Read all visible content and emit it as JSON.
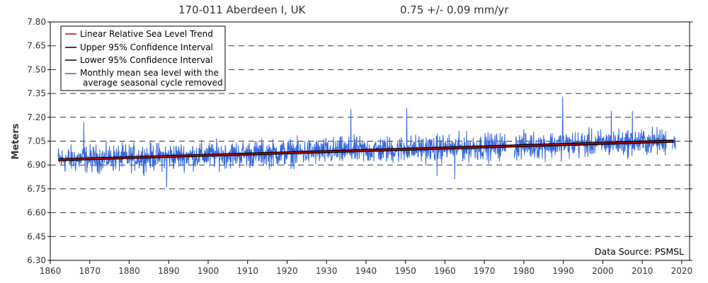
{
  "chart_data": {
    "type": "line",
    "station": "170-011 Aberdeen I, UK",
    "trend_text": "0.75 +/-  0.09 mm/yr",
    "ylabel": "Meters",
    "xlabel": "",
    "data_source": "Data Source: PSMSL",
    "xlim": [
      1860,
      2022
    ],
    "ylim": [
      6.3,
      7.8
    ],
    "x_ticks": [
      "1860",
      "1870",
      "1880",
      "1890",
      "1900",
      "1910",
      "1920",
      "1930",
      "1940",
      "1950",
      "1960",
      "1970",
      "1980",
      "1990",
      "2000",
      "2010",
      "2020"
    ],
    "y_ticks": [
      "6.30",
      "6.45",
      "6.60",
      "6.75",
      "6.90",
      "7.05",
      "7.20",
      "7.35",
      "7.50",
      "7.65",
      "7.80"
    ],
    "legend": [
      {
        "label": "Linear Relative Sea Level Trend",
        "color": "#cc0000"
      },
      {
        "label": "Upper 95% Confidence Interval",
        "color": "#000000"
      },
      {
        "label": "Lower 95% Confidence Interval",
        "color": "#000000"
      },
      {
        "label": "Monthly mean sea level with the",
        "label2": "average seasonal cycle removed",
        "color": "#3366dd"
      }
    ],
    "series": [
      {
        "name": "Linear Relative Sea Level Trend",
        "x": [
          1862,
          2018
        ],
        "values": [
          6.933,
          7.05
        ]
      },
      {
        "name": "Upper 95% Confidence Interval",
        "x": [
          1862,
          2018
        ],
        "values": [
          6.938,
          7.056
        ]
      },
      {
        "name": "Lower 95% Confidence Interval",
        "x": [
          1862,
          2018
        ],
        "values": [
          6.928,
          7.044
        ]
      },
      {
        "name": "Monthly mean sea level with the average seasonal cycle removed",
        "x_start": 1862,
        "x_end": 2018.5,
        "gaps": [
          [
            1975.5,
            1977.5
          ],
          [
            2016.2,
            2017.5
          ]
        ],
        "noise_amplitude": 0.06,
        "spikes": [
          {
            "x": 1868.5,
            "value": 7.17
          },
          {
            "x": 1889.5,
            "value": 6.76
          },
          {
            "x": 1936.2,
            "value": 7.25
          },
          {
            "x": 1950.3,
            "value": 7.26
          },
          {
            "x": 1958.0,
            "value": 6.83
          },
          {
            "x": 1962.5,
            "value": 6.81
          },
          {
            "x": 1989.8,
            "value": 7.33
          },
          {
            "x": 2002.2,
            "value": 7.24
          },
          {
            "x": 2007.5,
            "value": 7.24
          }
        ]
      }
    ]
  }
}
